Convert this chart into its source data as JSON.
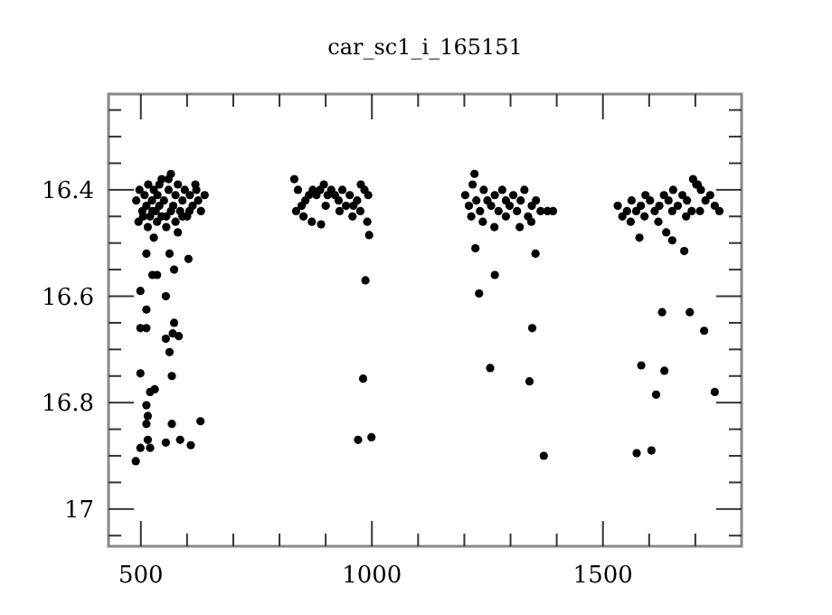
{
  "chart_data": {
    "type": "scatter",
    "title": "car_sc1_i_165151",
    "marker": "circle",
    "grid": false,
    "xlim": [
      430,
      1800
    ],
    "ylim": [
      17.07,
      16.22
    ],
    "xticks": [
      {
        "value": 500,
        "label": "500"
      },
      {
        "value": 600,
        "label": null
      },
      {
        "value": 700,
        "label": null
      },
      {
        "value": 800,
        "label": null
      },
      {
        "value": 900,
        "label": null
      },
      {
        "value": 1000,
        "label": "1000"
      },
      {
        "value": 1100,
        "label": null
      },
      {
        "value": 1200,
        "label": null
      },
      {
        "value": 1300,
        "label": null
      },
      {
        "value": 1400,
        "label": null
      },
      {
        "value": 1500,
        "label": "1500"
      },
      {
        "value": 1600,
        "label": null
      },
      {
        "value": 1700,
        "label": null
      }
    ],
    "yticks": [
      {
        "value": 16.25,
        "label": null
      },
      {
        "value": 16.3,
        "label": null
      },
      {
        "value": 16.35,
        "label": null
      },
      {
        "value": 16.4,
        "label": "16.4"
      },
      {
        "value": 16.45,
        "label": null
      },
      {
        "value": 16.5,
        "label": null
      },
      {
        "value": 16.55,
        "label": null
      },
      {
        "value": 16.6,
        "label": "16.6"
      },
      {
        "value": 16.65,
        "label": null
      },
      {
        "value": 16.7,
        "label": null
      },
      {
        "value": 16.75,
        "label": null
      },
      {
        "value": 16.8,
        "label": "16.8"
      },
      {
        "value": 16.85,
        "label": null
      },
      {
        "value": 16.9,
        "label": null
      },
      {
        "value": 16.95,
        "label": null
      },
      {
        "value": 17,
        "label": "17"
      },
      {
        "value": 17.05,
        "label": null
      }
    ],
    "series": [
      {
        "color": "#000000",
        "x": [
          490,
          497,
          503,
          508,
          512,
          516,
          520,
          524,
          528,
          532,
          536,
          540,
          545,
          550,
          555,
          560,
          565,
          570,
          575,
          580,
          585,
          590,
          595,
          600,
          606,
          612,
          618,
          624,
          630,
          638,
          495,
          505,
          515,
          525,
          535,
          545,
          555,
          565,
          575,
          590,
          605,
          620,
          540,
          560,
          832,
          840,
          848,
          856,
          864,
          872,
          880,
          888,
          896,
          904,
          912,
          920,
          928,
          936,
          944,
          952,
          960,
          968,
          976,
          984,
          992,
          836,
          852,
          870,
          900,
          930,
          958,
          975,
          990,
          1202,
          1210,
          1218,
          1226,
          1234,
          1242,
          1250,
          1258,
          1266,
          1274,
          1282,
          1290,
          1298,
          1306,
          1314,
          1322,
          1330,
          1338,
          1346,
          1355,
          1365,
          1380,
          1392,
          1215,
          1240,
          1265,
          1290,
          1320,
          1345,
          1222,
          1532,
          1542,
          1552,
          1562,
          1572,
          1582,
          1592,
          1602,
          1612,
          1622,
          1632,
          1642,
          1652,
          1662,
          1672,
          1682,
          1692,
          1702,
          1712,
          1722,
          1732,
          1742,
          1752,
          1560,
          1590,
          1620,
          1650,
          1680,
          1710,
          1695,
          1705,
          512,
          562,
          603,
          572,
          525,
          535,
          499,
          554,
          512,
          572,
          499,
          512,
          554,
          569,
          582,
          562,
          986,
          499,
          567,
          520,
          530,
          512,
          515,
          512,
          515,
          520,
          499,
          489,
          567,
          585,
          554,
          608,
          629,
          981,
          970,
          999,
          1224,
          1354,
          1266,
          1232,
          1347,
          1256,
          1341,
          1372,
          1628,
          1688,
          1719,
          1583,
          1633,
          1615,
          1742,
          1573,
          1605,
          1579,
          1637,
          1650,
          1676,
          890,
          994,
          580,
          528
        ],
        "values": [
          16.42,
          16.4,
          16.44,
          16.41,
          16.43,
          16.39,
          16.45,
          16.42,
          16.4,
          16.44,
          16.41,
          16.43,
          16.38,
          16.42,
          16.45,
          16.4,
          16.37,
          16.43,
          16.41,
          16.39,
          16.44,
          16.42,
          16.4,
          16.45,
          16.41,
          16.43,
          16.39,
          16.42,
          16.44,
          16.41,
          16.46,
          16.45,
          16.47,
          16.44,
          16.46,
          16.45,
          16.47,
          16.44,
          16.46,
          16.45,
          16.44,
          16.4,
          16.39,
          16.38,
          16.38,
          16.4,
          16.43,
          16.42,
          16.41,
          16.4,
          16.41,
          16.4,
          16.39,
          16.41,
          16.4,
          16.41,
          16.42,
          16.4,
          16.43,
          16.41,
          16.43,
          16.42,
          16.39,
          16.4,
          16.41,
          16.44,
          16.45,
          16.46,
          16.43,
          16.44,
          16.45,
          16.44,
          16.46,
          16.41,
          16.43,
          16.39,
          16.42,
          16.44,
          16.4,
          16.42,
          16.43,
          16.41,
          16.44,
          16.4,
          16.42,
          16.43,
          16.41,
          16.44,
          16.42,
          16.4,
          16.45,
          16.43,
          16.42,
          16.44,
          16.44,
          16.44,
          16.45,
          16.46,
          16.47,
          16.45,
          16.47,
          16.46,
          16.37,
          16.43,
          16.45,
          16.44,
          16.42,
          16.44,
          16.43,
          16.41,
          16.42,
          16.44,
          16.43,
          16.41,
          16.42,
          16.4,
          16.43,
          16.41,
          16.42,
          16.44,
          16.39,
          16.4,
          16.42,
          16.41,
          16.43,
          16.44,
          16.46,
          16.45,
          16.46,
          16.44,
          16.45,
          16.44,
          16.38,
          16.39,
          16.52,
          16.52,
          16.53,
          16.55,
          16.56,
          16.56,
          16.59,
          16.6,
          16.625,
          16.65,
          16.66,
          16.66,
          16.68,
          16.67,
          16.675,
          16.705,
          16.57,
          16.745,
          16.75,
          16.78,
          16.775,
          16.805,
          16.825,
          16.84,
          16.87,
          16.885,
          16.885,
          16.91,
          16.84,
          16.87,
          16.875,
          16.88,
          16.835,
          16.755,
          16.87,
          16.865,
          16.51,
          16.52,
          16.56,
          16.595,
          16.66,
          16.735,
          16.76,
          16.9,
          16.63,
          16.63,
          16.665,
          16.73,
          16.74,
          16.785,
          16.78,
          16.895,
          16.89,
          16.49,
          16.48,
          16.495,
          16.515,
          16.465,
          16.485,
          16.48,
          16.49
        ]
      }
    ]
  }
}
